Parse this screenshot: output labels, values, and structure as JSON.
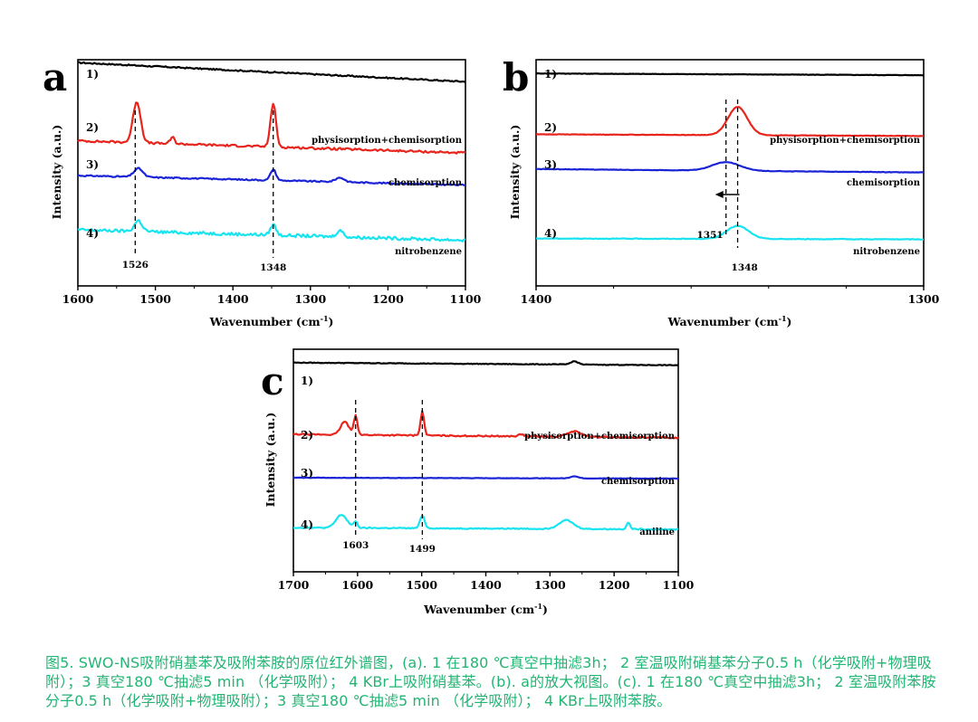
{
  "chart_data": [
    {
      "panel": "a",
      "type": "line",
      "xlabel": "Wavenumber (cm-1)",
      "xlabel_main": "Wavenumber (cm",
      "xlabel_sup": "-1",
      "xlabel_close": ")",
      "ylabel": "Intensity (a.u.)",
      "xlim": [
        1600,
        1100
      ],
      "xticks": [
        1600,
        1500,
        1400,
        1300,
        1200,
        1100
      ],
      "tick_labels": [
        "1600",
        "1500",
        "1400",
        "1300",
        "1200",
        "1100"
      ],
      "series_tags": [
        "1)",
        "2)",
        "3)",
        "4)"
      ],
      "annotations": [
        "physisorption+chemisorption",
        "chemisorption",
        "nitrobenzene"
      ],
      "peaks": [
        1526,
        1348
      ],
      "peak_labels": [
        "1526",
        "1348"
      ],
      "series": [
        {
          "color": "#000000",
          "baseline": 0.92,
          "slope": -0.22,
          "peaks": [],
          "noise": 0.006
        },
        {
          "color": "#e8241c",
          "baseline": 0.56,
          "slope": -0.14,
          "peaks": [
            [
              1524,
              0.19,
              7
            ],
            [
              1348,
              0.2,
              5
            ],
            [
              1478,
              0.03,
              4
            ]
          ],
          "noise": 0.01
        },
        {
          "color": "#1a23d6",
          "baseline": 0.4,
          "slope": -0.11,
          "peaks": [
            [
              1522,
              0.04,
              8
            ],
            [
              1348,
              0.05,
              5
            ],
            [
              1262,
              0.02,
              8
            ]
          ],
          "noise": 0.006
        },
        {
          "color": "#17e4ef",
          "baseline": 0.15,
          "slope": -0.12,
          "peaks": [
            [
              1522,
              0.05,
              7
            ],
            [
              1348,
              0.05,
              5
            ],
            [
              1262,
              0.03,
              6
            ]
          ],
          "noise": 0.014
        }
      ]
    },
    {
      "panel": "b",
      "type": "line",
      "xlabel": "Wavenumber (cm-1)",
      "xlabel_main": "Wavenumber (cm",
      "xlabel_sup": "-1",
      "xlabel_close": ")",
      "ylabel": "Intensity (a.u.)",
      "xlim": [
        1400,
        1300
      ],
      "xticks": [
        1400,
        1300
      ],
      "tick_labels": [
        "1400",
        "1300"
      ],
      "series_tags": [
        "1)",
        "2)",
        "3)",
        "4)"
      ],
      "annotations": [
        "physisorption+chemisorption",
        "chemisorption",
        "nitrobenzene"
      ],
      "peaks": [
        1351,
        1348
      ],
      "peak_labels": [
        "1351",
        "1348"
      ],
      "series": [
        {
          "color": "#000000",
          "baseline": 0.87,
          "slope": -0.02,
          "peaks": [],
          "noise": 0.002
        },
        {
          "color": "#e8241c",
          "baseline": 0.59,
          "slope": -0.02,
          "peaks": [
            [
              1348,
              0.13,
              3.5
            ]
          ],
          "noise": 0.002
        },
        {
          "color": "#1a23d6",
          "baseline": 0.43,
          "slope": -0.04,
          "peaks": [
            [
              1351,
              0.04,
              5
            ]
          ],
          "noise": 0.002
        },
        {
          "color": "#17e4ef",
          "baseline": 0.11,
          "slope": -0.01,
          "peaks": [
            [
              1348,
              0.06,
              4
            ]
          ],
          "noise": 0.003
        }
      ]
    },
    {
      "panel": "c",
      "type": "line",
      "xlabel": "Wavenumber (cm-1)",
      "xlabel_main": "Wavenumber (cm",
      "xlabel_sup": "-1",
      "xlabel_close": ")",
      "ylabel": "Intensity (a.u.)",
      "xlim": [
        1700,
        1100
      ],
      "xticks": [
        1700,
        1600,
        1500,
        1400,
        1300,
        1200,
        1100
      ],
      "tick_labels": [
        "1700",
        "1600",
        "1500",
        "1400",
        "1300",
        "1200",
        "1100"
      ],
      "series_tags": [
        "1)",
        "2)",
        "3)",
        "4)"
      ],
      "annotations": [
        "physisorption+chemisorption",
        "chemisorption",
        "aniline"
      ],
      "peaks": [
        1603,
        1499
      ],
      "peak_labels": [
        "1603",
        "1499"
      ],
      "series": [
        {
          "color": "#000000",
          "baseline": 0.88,
          "slope": -0.03,
          "peaks": [
            [
              1262,
              0.015,
              8
            ]
          ],
          "noise": 0.003
        },
        {
          "color": "#e8241c",
          "baseline": 0.55,
          "slope": -0.04,
          "peaks": [
            [
              1620,
              0.06,
              9
            ],
            [
              1603,
              0.09,
              4
            ],
            [
              1499,
              0.11,
              4
            ],
            [
              1262,
              0.025,
              15
            ],
            [
              1345,
              0.01,
              5
            ]
          ],
          "noise": 0.006
        },
        {
          "color": "#1a23d6",
          "baseline": 0.35,
          "slope": -0.01,
          "peaks": [
            [
              1262,
              0.01,
              8
            ]
          ],
          "noise": 0.002
        },
        {
          "color": "#17e4ef",
          "baseline": 0.12,
          "slope": -0.02,
          "peaks": [
            [
              1625,
              0.06,
              12
            ],
            [
              1603,
              0.03,
              4
            ],
            [
              1499,
              0.06,
              5
            ],
            [
              1275,
              0.04,
              16
            ],
            [
              1178,
              0.03,
              4
            ]
          ],
          "noise": 0.005
        }
      ]
    }
  ],
  "caption": "图5. SWO-NS吸附硝基苯及吸附苯胺的原位红外谱图，(a). 1 在180 ℃真空中抽滤3h； 2 室温吸附硝基苯分子0.5 h（化学吸附+物理吸附）；3 真空180 ℃抽滤5 min （化学吸附）； 4 KBr上吸附硝基苯。(b). a的放大视图。(c). 1 在180 ℃真空中抽滤3h； 2 室温吸附苯胺分子0.5 h（化学吸附+物理吸附）；3 真空180 ℃抽滤5 min （化学吸附）； 4 KBr上吸附苯胺。",
  "colors": {
    "caption": "#22b573"
  }
}
